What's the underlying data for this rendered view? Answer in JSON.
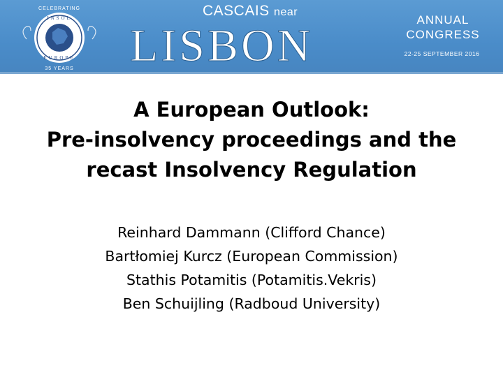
{
  "banner": {
    "logo_text": [
      "CELEBRATING",
      "INSOL",
      "EUROPE",
      "35 YEARS"
    ],
    "city_prefix": "CASCAIS",
    "city_near": "near",
    "city": "LISBON",
    "event_line1": "ANNUAL",
    "event_line2": "CONGRESS",
    "dates": "22-25 SEPTEMBER 2016",
    "color": "#4a8cc9"
  },
  "slide": {
    "title_lines": [
      "A European Outlook:",
      "Pre-insolvency proceedings and the",
      "recast Insolvency Regulation"
    ],
    "authors": [
      "Reinhard Dammann (Clifford Chance)",
      "Bartłomiej Kurcz (European Commission)",
      "Stathis Potamitis (Potamitis.Vekris)",
      "Ben Schuijling (Radboud University)"
    ]
  }
}
